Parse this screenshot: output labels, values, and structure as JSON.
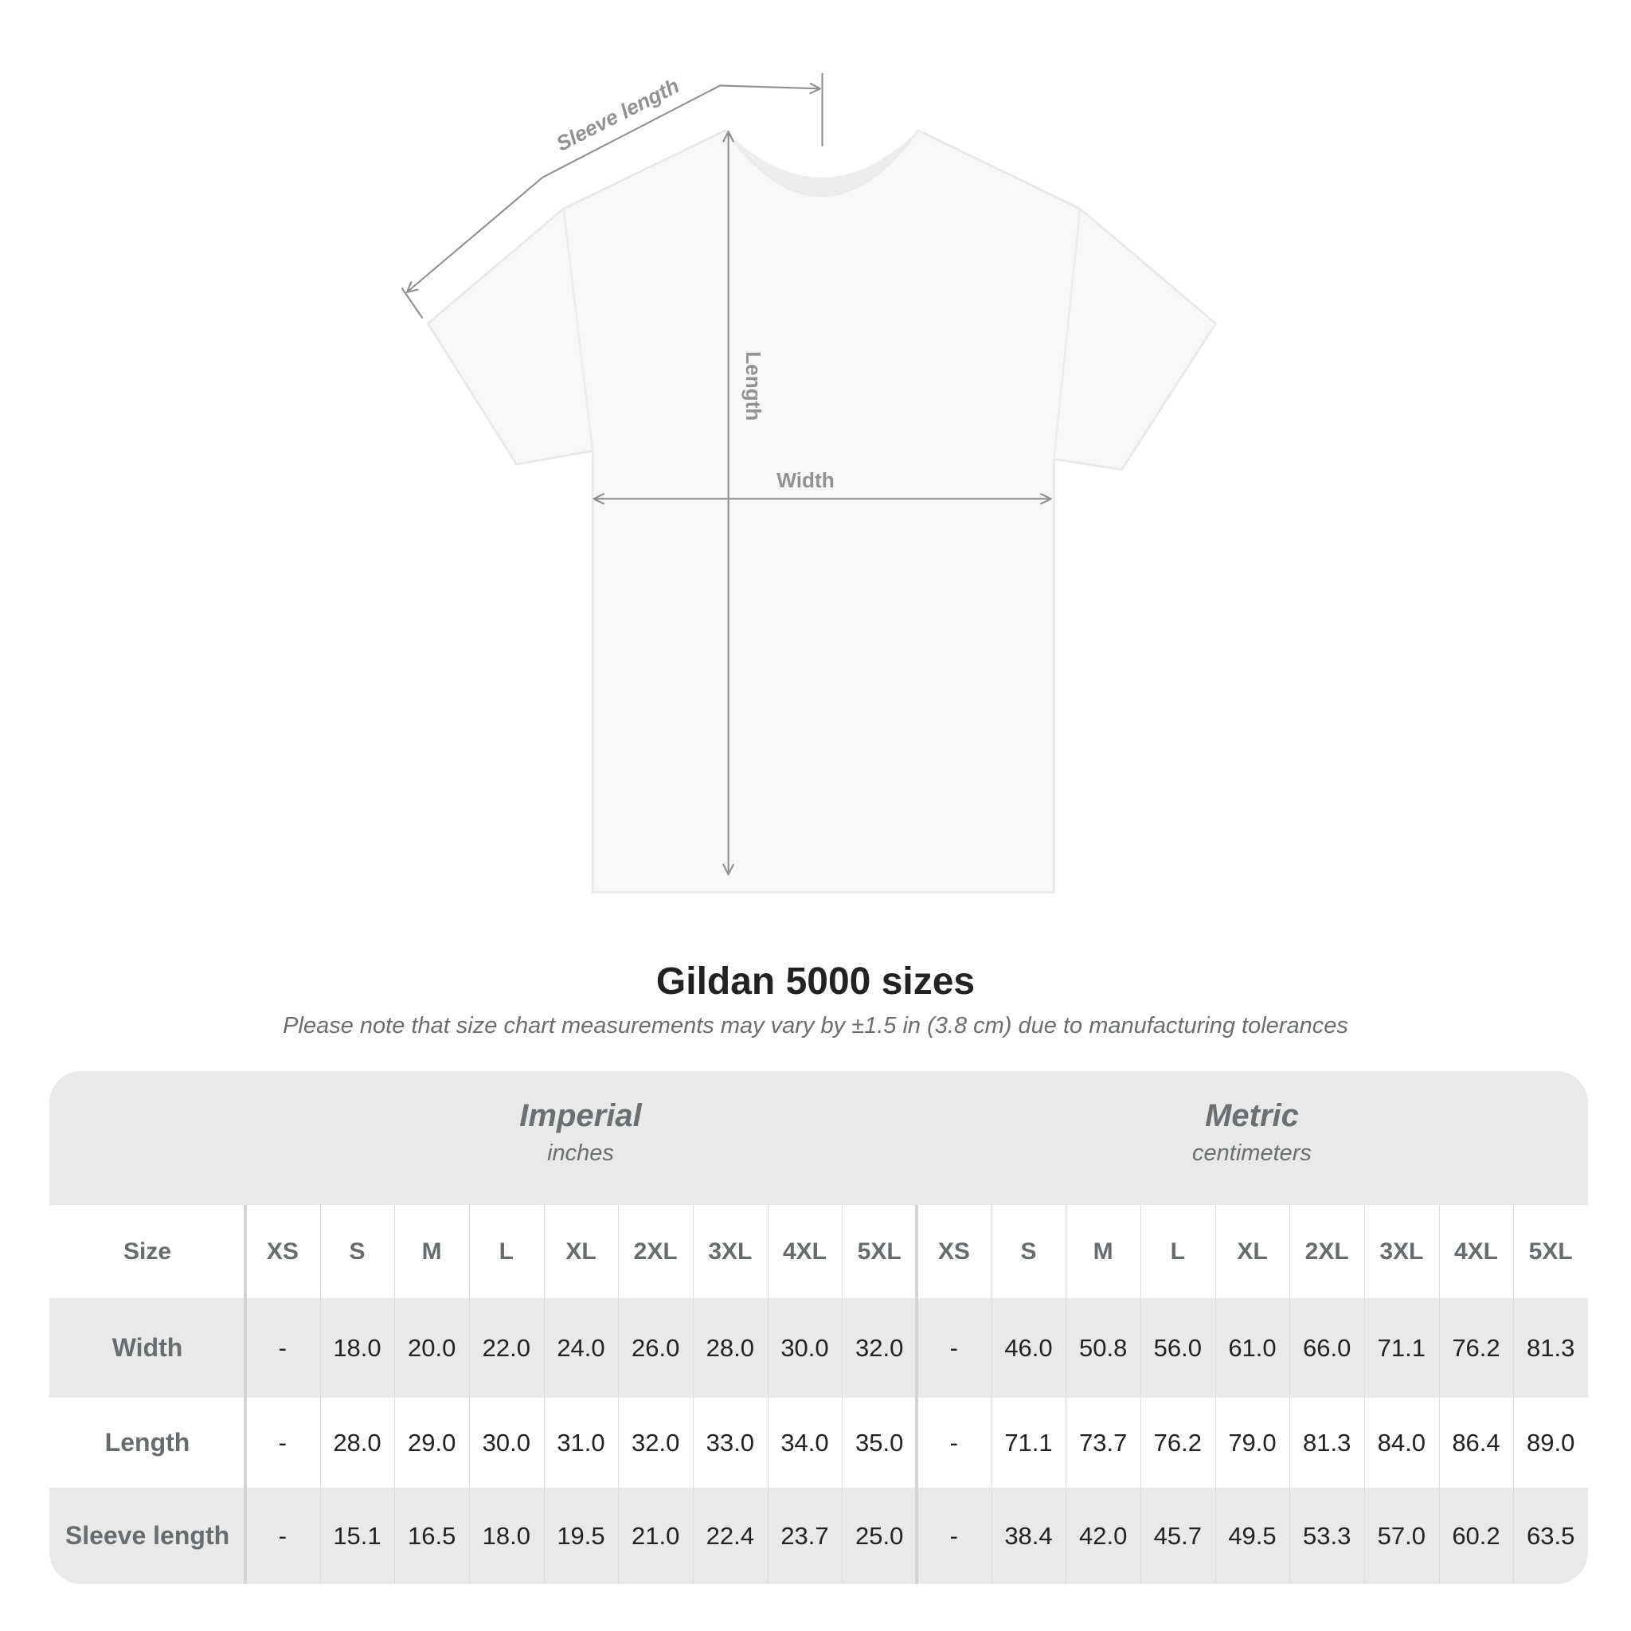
{
  "diagram": {
    "sleeve_label": "Sleeve length",
    "length_label": "Length",
    "width_label": "Width"
  },
  "title": "Gildan 5000 sizes",
  "subtitle": "Please note that size chart measurements may vary by ±1.5 in (3.8 cm) due to manufacturing tolerances",
  "table": {
    "imperial": {
      "name": "Imperial",
      "unit": "inches"
    },
    "metric": {
      "name": "Metric",
      "unit": "centimeters"
    },
    "size_label": "Size",
    "sizes": [
      "XS",
      "S",
      "M",
      "L",
      "XL",
      "2XL",
      "3XL",
      "4XL",
      "5XL"
    ],
    "rows": [
      {
        "label": "Width",
        "imperial": [
          "-",
          "18.0",
          "20.0",
          "22.0",
          "24.0",
          "26.0",
          "28.0",
          "30.0",
          "32.0"
        ],
        "metric": [
          "-",
          "46.0",
          "50.8",
          "56.0",
          "61.0",
          "66.0",
          "71.1",
          "76.2",
          "81.3"
        ]
      },
      {
        "label": "Length",
        "imperial": [
          "-",
          "28.0",
          "29.0",
          "30.0",
          "31.0",
          "32.0",
          "33.0",
          "34.0",
          "35.0"
        ],
        "metric": [
          "-",
          "71.1",
          "73.7",
          "76.2",
          "79.0",
          "81.3",
          "84.0",
          "86.4",
          "89.0"
        ]
      },
      {
        "label": "Sleeve length",
        "imperial": [
          "-",
          "15.1",
          "16.5",
          "18.0",
          "19.5",
          "21.0",
          "22.4",
          "23.7",
          "25.0"
        ],
        "metric": [
          "-",
          "38.4",
          "42.0",
          "45.7",
          "49.5",
          "53.3",
          "57.0",
          "60.2",
          "63.5"
        ]
      }
    ]
  },
  "colors": {
    "band": "#e9e9e9",
    "label": "#676c6f",
    "value": "#222222",
    "measure_line": "#8f8f8f"
  }
}
